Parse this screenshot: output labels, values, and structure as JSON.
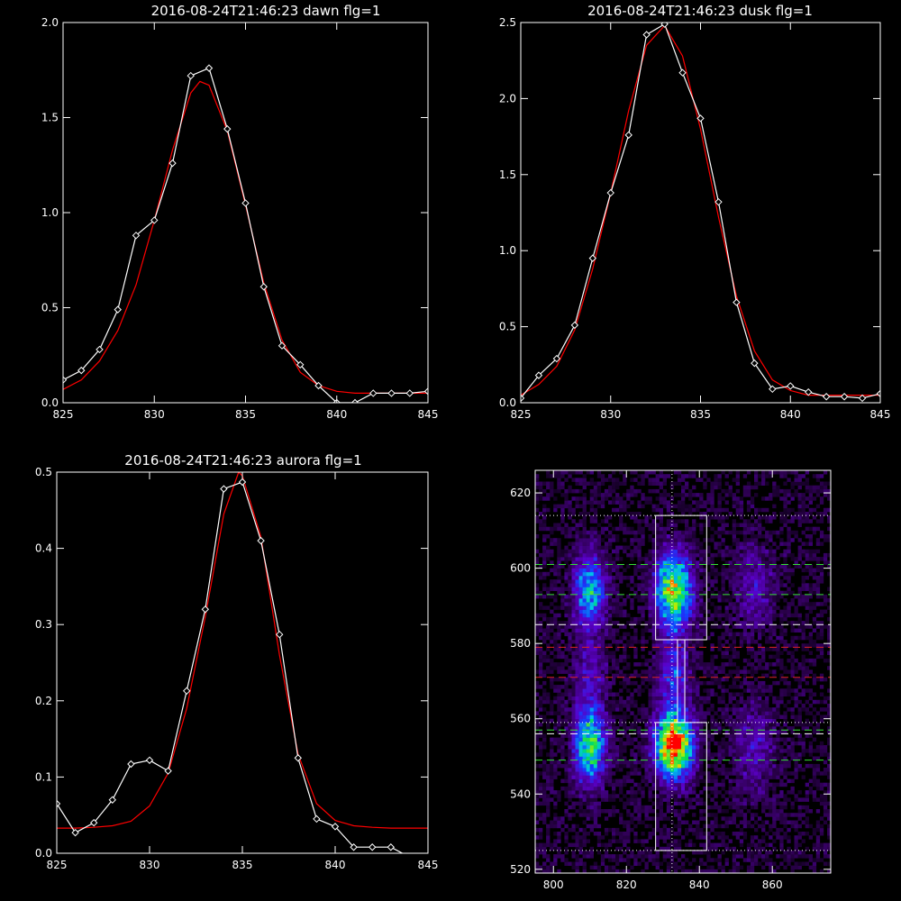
{
  "chart_data": [
    {
      "type": "line",
      "title": "2016-08-24T21:46:23 dawn flg=1",
      "xlim": [
        825,
        845
      ],
      "ylim": [
        0,
        2.0
      ],
      "xticks": [
        825,
        830,
        835,
        840,
        845
      ],
      "yticks": [
        0,
        0.5,
        1.0,
        1.5,
        2.0
      ],
      "xtick_labels": [
        "825",
        "830",
        "835",
        "840",
        "845"
      ],
      "ytick_labels": [
        "0.0",
        "0.5",
        "1.0",
        "1.5",
        "2.0"
      ],
      "series": [
        {
          "color": "#ffffff",
          "marker": "diamond",
          "x": [
            825,
            826,
            827,
            828,
            829,
            830,
            831,
            832,
            833,
            834,
            835,
            836,
            837,
            838,
            839,
            840,
            841,
            842,
            843,
            844,
            845
          ],
          "y": [
            0.12,
            0.17,
            0.28,
            0.49,
            0.88,
            0.96,
            1.26,
            1.72,
            1.76,
            1.44,
            1.05,
            0.61,
            0.3,
            0.2,
            0.09,
            0.0,
            0.0,
            0.05,
            0.05,
            0.05,
            0.06
          ]
        },
        {
          "color": "#ff0000",
          "marker": "none",
          "x": [
            825,
            826,
            827,
            828,
            829,
            830,
            831,
            832,
            832.5,
            833,
            834,
            835,
            836,
            837,
            838,
            839,
            840,
            841,
            842,
            843,
            844,
            845
          ],
          "y": [
            0.07,
            0.12,
            0.22,
            0.38,
            0.62,
            0.96,
            1.33,
            1.63,
            1.69,
            1.67,
            1.43,
            1.04,
            0.63,
            0.33,
            0.16,
            0.09,
            0.06,
            0.05,
            0.05,
            0.05,
            0.05,
            0.05
          ]
        }
      ]
    },
    {
      "type": "line",
      "title": "2016-08-24T21:46:23 dusk flg=1",
      "xlim": [
        825,
        845
      ],
      "ylim": [
        0,
        2.5
      ],
      "xticks": [
        825,
        830,
        835,
        840,
        845
      ],
      "yticks": [
        0,
        0.5,
        1.0,
        1.5,
        2.0,
        2.5
      ],
      "xtick_labels": [
        "825",
        "830",
        "835",
        "840",
        "845"
      ],
      "ytick_labels": [
        "0.0",
        "0.5",
        "1.0",
        "1.5",
        "2.0",
        "2.5"
      ],
      "series": [
        {
          "color": "#ffffff",
          "marker": "diamond",
          "x": [
            825,
            826,
            827,
            828,
            829,
            830,
            831,
            832,
            833,
            834,
            835,
            836,
            837,
            838,
            839,
            840,
            841,
            842,
            843,
            844,
            845
          ],
          "y": [
            0.03,
            0.18,
            0.29,
            0.51,
            0.95,
            1.38,
            1.76,
            2.42,
            2.49,
            2.17,
            1.87,
            1.32,
            0.66,
            0.26,
            0.09,
            0.11,
            0.07,
            0.04,
            0.04,
            0.03,
            0.06
          ]
        },
        {
          "color": "#ff0000",
          "marker": "none",
          "x": [
            825,
            826,
            827,
            828,
            829,
            830,
            831,
            832,
            833,
            834,
            835,
            836,
            837,
            838,
            839,
            840,
            841,
            842,
            843,
            844,
            845
          ],
          "y": [
            0.05,
            0.12,
            0.24,
            0.48,
            0.88,
            1.38,
            1.92,
            2.35,
            2.48,
            2.28,
            1.8,
            1.22,
            0.7,
            0.34,
            0.15,
            0.08,
            0.05,
            0.05,
            0.05,
            0.05,
            0.05
          ]
        }
      ]
    },
    {
      "type": "line",
      "title": "2016-08-24T21:46:23 aurora flg=1",
      "xlim": [
        825,
        845
      ],
      "ylim": [
        0,
        0.5
      ],
      "xticks": [
        825,
        830,
        835,
        840,
        845
      ],
      "yticks": [
        0,
        0.1,
        0.2,
        0.3,
        0.4,
        0.5
      ],
      "xtick_labels": [
        "825",
        "830",
        "835",
        "840",
        "845"
      ],
      "ytick_labels": [
        "0.0",
        "0.1",
        "0.2",
        "0.3",
        "0.4",
        "0.5"
      ],
      "series": [
        {
          "color": "#ffffff",
          "marker": "diamond",
          "x": [
            825,
            826,
            827,
            828,
            829,
            830,
            831,
            832,
            833,
            834,
            835,
            836,
            837,
            838,
            839,
            840,
            841,
            842,
            843,
            844,
            845
          ],
          "y": [
            0.065,
            0.027,
            0.04,
            0.07,
            0.117,
            0.122,
            0.108,
            0.213,
            0.32,
            0.478,
            0.487,
            0.41,
            0.287,
            0.125,
            0.045,
            0.035,
            0.008,
            0.008,
            0.008,
            -0.005,
            -0.01
          ]
        },
        {
          "color": "#ff0000",
          "marker": "none",
          "x": [
            825,
            826,
            827,
            828,
            829,
            830,
            831,
            832,
            833,
            834,
            834.8,
            835,
            836,
            837,
            838,
            839,
            840,
            841,
            842,
            843,
            844,
            845
          ],
          "y": [
            0.033,
            0.033,
            0.034,
            0.036,
            0.042,
            0.062,
            0.105,
            0.19,
            0.31,
            0.445,
            0.5,
            0.495,
            0.415,
            0.26,
            0.13,
            0.065,
            0.043,
            0.036,
            0.034,
            0.033,
            0.033,
            0.033
          ]
        }
      ]
    },
    {
      "type": "heatmap",
      "title": "",
      "xlim": [
        795,
        876
      ],
      "ylim": [
        519,
        626
      ],
      "xticks": [
        800,
        820,
        840,
        860
      ],
      "yticks": [
        520,
        540,
        560,
        580,
        600,
        620
      ],
      "xtick_labels": [
        "800",
        "820",
        "840",
        "860"
      ],
      "ytick_labels": [
        "520",
        "540",
        "560",
        "580",
        "600",
        "620"
      ],
      "blobs": [
        {
          "x": 810,
          "y": 553,
          "sx": 3,
          "sy": 7,
          "amp": 0.65
        },
        {
          "x": 810,
          "y": 594,
          "sx": 3,
          "sy": 7,
          "amp": 0.5
        },
        {
          "x": 833,
          "y": 553,
          "sx": 3.5,
          "sy": 6,
          "amp": 1.0
        },
        {
          "x": 833,
          "y": 594,
          "sx": 3.5,
          "sy": 7,
          "amp": 0.75
        },
        {
          "x": 833,
          "y": 572,
          "sx": 3,
          "sy": 6,
          "amp": 0.3
        },
        {
          "x": 810,
          "y": 572,
          "sx": 3,
          "sy": 6,
          "amp": 0.2
        },
        {
          "x": 855,
          "y": 552,
          "sx": 4,
          "sy": 8,
          "amp": 0.2
        },
        {
          "x": 855,
          "y": 595,
          "sx": 4,
          "sy": 8,
          "amp": 0.18
        }
      ],
      "boxes": [
        {
          "x0": 828,
          "x1": 842,
          "y0": 581,
          "y1": 614
        },
        {
          "x0": 828,
          "x1": 842,
          "y0": 525,
          "y1": 559
        },
        {
          "x0": 834,
          "x1": 836,
          "y0": 559,
          "y1": 581
        }
      ],
      "vline_x": 832.5,
      "hlines": [
        {
          "y": 614,
          "color": "#ffffff",
          "style": "dotted"
        },
        {
          "y": 601,
          "color": "#33dd33",
          "style": "dashed"
        },
        {
          "y": 593,
          "color": "#33dd33",
          "style": "dashed"
        },
        {
          "y": 585,
          "color": "#ffffff",
          "style": "dashed"
        },
        {
          "y": 579,
          "color": "#dd2222",
          "style": "dashed"
        },
        {
          "y": 571,
          "color": "#dd2222",
          "style": "dashed"
        },
        {
          "y": 559,
          "color": "#ffffff",
          "style": "dotted"
        },
        {
          "y": 557,
          "color": "#33dd33",
          "style": "dashed"
        },
        {
          "y": 556,
          "color": "#ffffff",
          "style": "dashed"
        },
        {
          "y": 549,
          "color": "#33dd33",
          "style": "dashed"
        },
        {
          "y": 525,
          "color": "#ffffff",
          "style": "dotted"
        }
      ]
    }
  ]
}
